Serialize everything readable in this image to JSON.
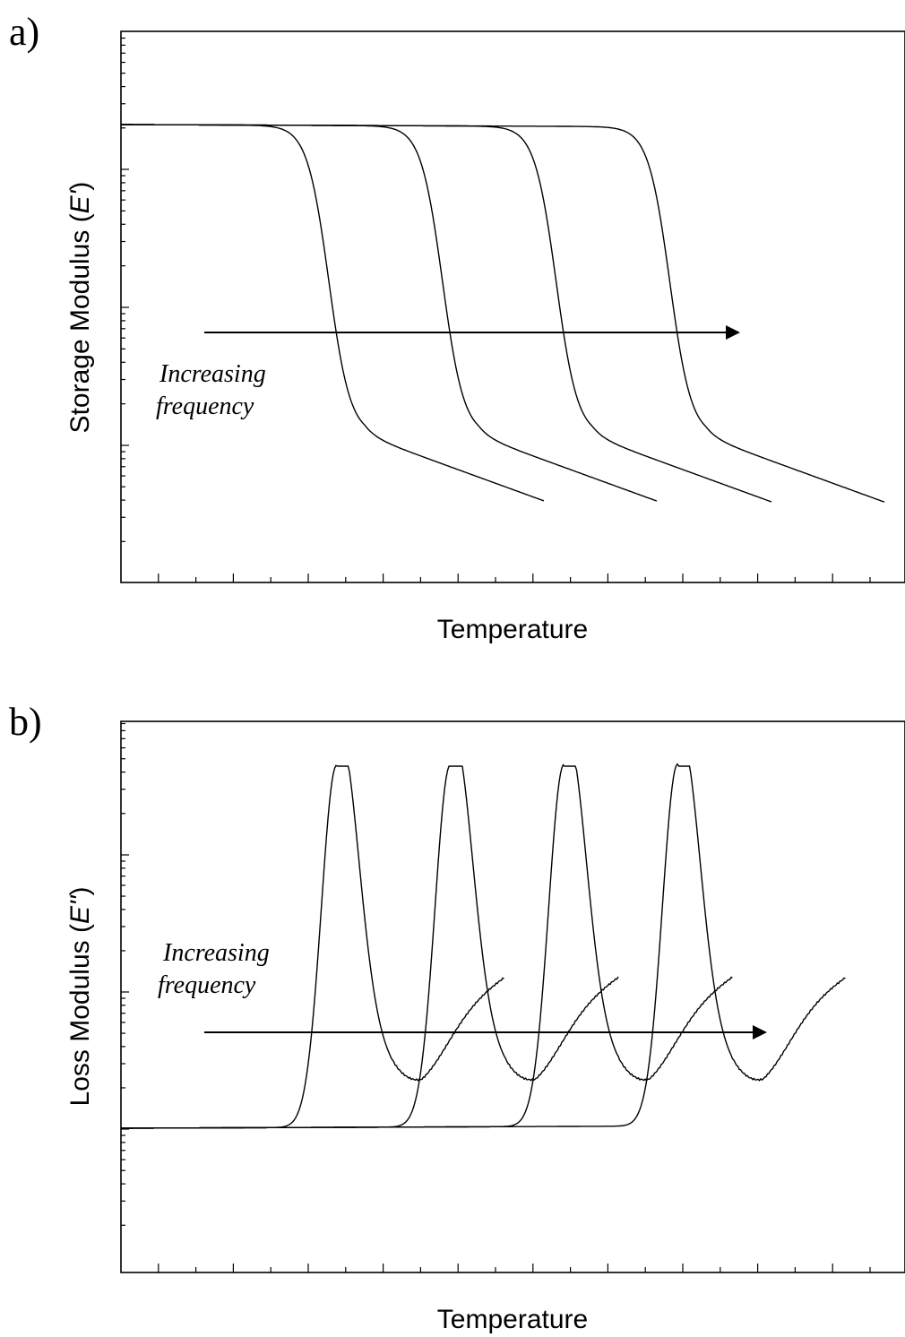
{
  "chart_data": [
    {
      "panel_label": "a)",
      "type": "line",
      "title": "",
      "xlabel": "Temperature",
      "ylabel_prefix": "Storage Modulus (",
      "ylabel_symbol": "E'",
      "ylabel_suffix": ")",
      "y_scale": "log",
      "tick_labels_shown": false,
      "grid": false,
      "annotation": {
        "line1": "Increasing",
        "line2": "frequency",
        "arrow": "pointing right, toward higher temperature"
      },
      "series": [
        {
          "transition_x": 0.265,
          "end_x": 0.54
        },
        {
          "transition_x": 0.41,
          "end_x": 0.685
        },
        {
          "transition_x": 0.555,
          "end_x": 0.83
        },
        {
          "transition_x": 0.7,
          "end_x": 0.975
        }
      ]
    },
    {
      "panel_label": "b)",
      "type": "line",
      "title": "",
      "xlabel": "Temperature",
      "ylabel_prefix": "Loss Modulus (",
      "ylabel_symbol": "E''",
      "ylabel_suffix": ")",
      "y_scale": "log",
      "tick_labels_shown": false,
      "grid": false,
      "annotation": {
        "line1": "Increasing",
        "line2": "frequency",
        "arrow": "pointing right, toward higher temperature"
      },
      "series": [
        {
          "peak_x": 0.275,
          "end_x": 0.49
        },
        {
          "peak_x": 0.42,
          "end_x": 0.635
        },
        {
          "peak_x": 0.565,
          "end_x": 0.78
        },
        {
          "peak_x": 0.71,
          "end_x": 0.925
        }
      ]
    }
  ]
}
